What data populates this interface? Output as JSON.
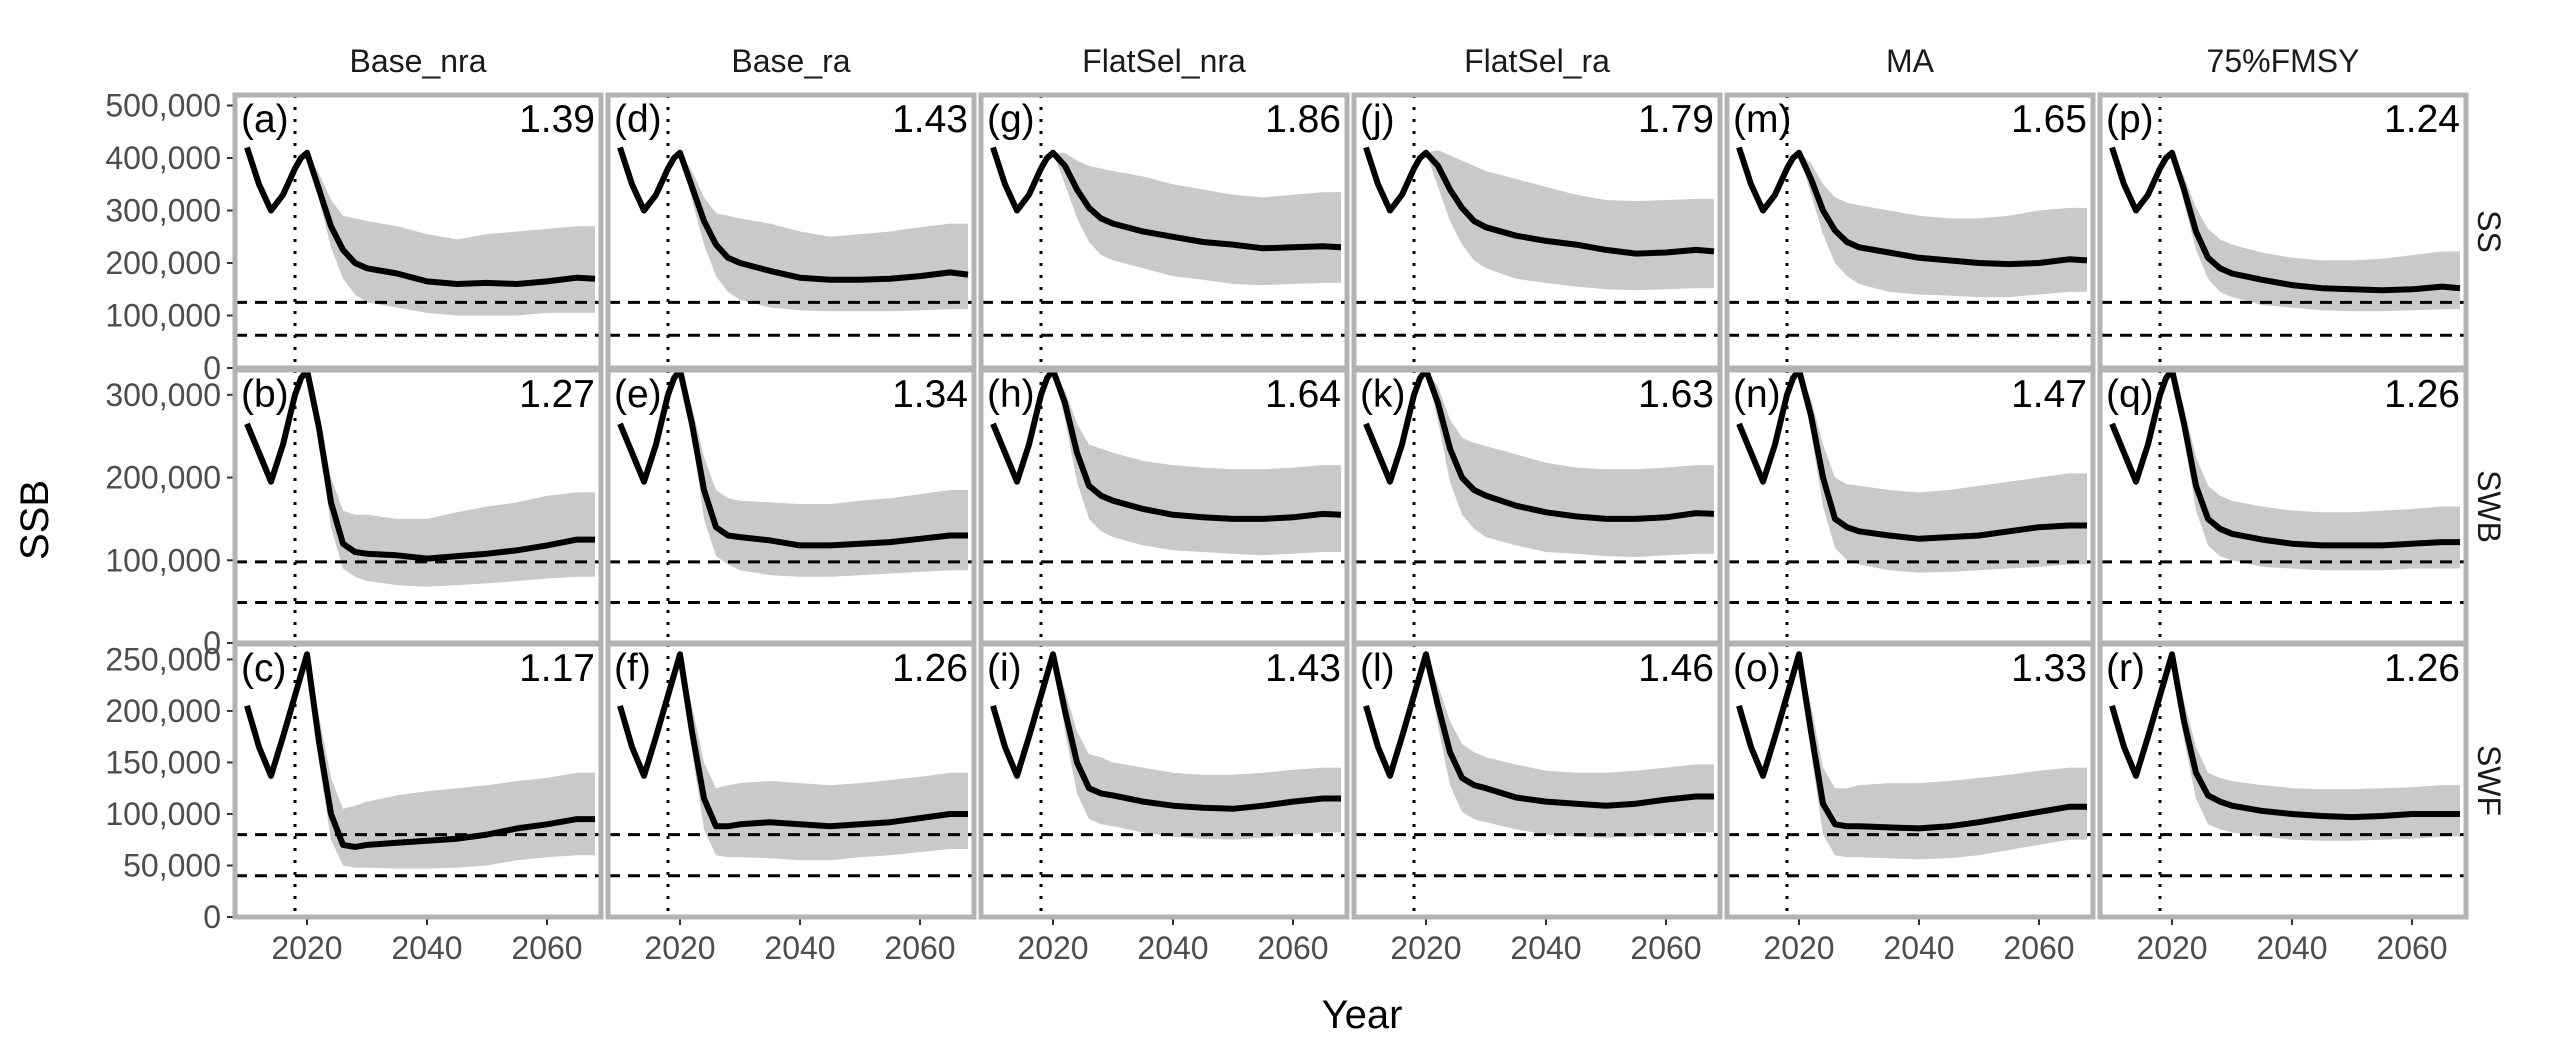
{
  "chart_data": {
    "type": "line",
    "xlabel": "Year",
    "ylabel": "SSB",
    "x_range": [
      2008,
      2069
    ],
    "x_ticks": [
      2020,
      2040,
      2060
    ],
    "historical_end_year": 2018,
    "columns": [
      "Base_nra",
      "Base_ra",
      "FlatSel_nra",
      "FlatSel_ra",
      "MA",
      "75%FMSY"
    ],
    "rows": [
      {
        "name": "SS",
        "ylim": [
          0,
          520000
        ],
        "ticks": [
          0,
          100000,
          200000,
          300000,
          400000,
          500000
        ],
        "tick_labels": [
          "0",
          "100,000",
          "200,000",
          "300,000",
          "400,000",
          "500,000"
        ],
        "reference_lines": [
          125000,
          62500
        ]
      },
      {
        "name": "SWB",
        "ylim": [
          0,
          330000
        ],
        "ticks": [
          0,
          100000,
          200000,
          300000
        ],
        "tick_labels": [
          "0",
          "100,000",
          "200,000",
          "300,000"
        ],
        "reference_lines": [
          98000,
          49000
        ]
      },
      {
        "name": "SWF",
        "ylim": [
          0,
          265000
        ],
        "ticks": [
          0,
          50000,
          100000,
          150000,
          200000,
          250000
        ],
        "tick_labels": [
          "0",
          "50,000",
          "100,000",
          "150,000",
          "200,000",
          "250,000"
        ],
        "reference_lines": [
          80000,
          40000
        ]
      }
    ],
    "historical": {
      "x": [
        2010,
        2012,
        2014,
        2016,
        2018,
        2019,
        2020
      ],
      "SS": [
        420000,
        350000,
        300000,
        330000,
        380000,
        400000,
        410000
      ],
      "SWB": [
        265000,
        230000,
        195000,
        240000,
        300000,
        320000,
        330000
      ],
      "SWF": [
        205000,
        165000,
        137000,
        175000,
        215000,
        235000,
        255000
      ]
    },
    "projection_x": [
      2020,
      2022,
      2024,
      2026,
      2028,
      2030,
      2035,
      2040,
      2045,
      2050,
      2055,
      2060,
      2065,
      2068
    ],
    "panels": [
      {
        "tag": "(a)",
        "ratio": "1.39",
        "row": "SS",
        "col": "Base_nra",
        "median": [
          410000,
          340000,
          270000,
          225000,
          200000,
          190000,
          180000,
          165000,
          160000,
          162000,
          160000,
          165000,
          172000,
          170000
        ],
        "lower": [
          410000,
          320000,
          230000,
          170000,
          140000,
          125000,
          115000,
          105000,
          100000,
          100000,
          100000,
          105000,
          105000,
          105000
        ],
        "upper": [
          410000,
          370000,
          320000,
          290000,
          285000,
          280000,
          270000,
          255000,
          245000,
          255000,
          260000,
          265000,
          270000,
          270000
        ]
      },
      {
        "tag": "(d)",
        "ratio": "1.43",
        "row": "SS",
        "col": "Base_ra",
        "median": [
          410000,
          345000,
          280000,
          235000,
          210000,
          200000,
          185000,
          172000,
          168000,
          168000,
          170000,
          175000,
          182000,
          178000
        ],
        "lower": [
          410000,
          320000,
          235000,
          175000,
          145000,
          130000,
          115000,
          110000,
          108000,
          108000,
          108000,
          110000,
          112000,
          112000
        ],
        "upper": [
          410000,
          375000,
          325000,
          295000,
          290000,
          285000,
          275000,
          260000,
          250000,
          255000,
          260000,
          268000,
          275000,
          275000
        ]
      },
      {
        "tag": "(g)",
        "ratio": "1.86",
        "row": "SS",
        "col": "FlatSel_nra",
        "median": [
          410000,
          385000,
          340000,
          305000,
          285000,
          275000,
          260000,
          250000,
          240000,
          235000,
          228000,
          230000,
          232000,
          230000
        ],
        "lower": [
          410000,
          350000,
          285000,
          240000,
          215000,
          205000,
          190000,
          175000,
          168000,
          160000,
          158000,
          160000,
          162000,
          162000
        ],
        "upper": [
          410000,
          410000,
          395000,
          385000,
          380000,
          375000,
          365000,
          350000,
          340000,
          330000,
          325000,
          330000,
          335000,
          335000
        ]
      },
      {
        "tag": "(j)",
        "ratio": "1.79",
        "row": "SS",
        "col": "FlatSel_ra",
        "median": [
          410000,
          385000,
          340000,
          305000,
          280000,
          268000,
          252000,
          242000,
          235000,
          225000,
          218000,
          220000,
          225000,
          222000
        ],
        "lower": [
          410000,
          345000,
          280000,
          235000,
          205000,
          190000,
          170000,
          162000,
          155000,
          150000,
          148000,
          150000,
          152000,
          152000
        ],
        "upper": [
          410000,
          415000,
          405000,
          395000,
          385000,
          375000,
          360000,
          345000,
          330000,
          320000,
          318000,
          320000,
          322000,
          322000
        ]
      },
      {
        "tag": "(m)",
        "ratio": "1.65",
        "row": "SS",
        "col": "MA",
        "median": [
          410000,
          360000,
          300000,
          262000,
          240000,
          230000,
          220000,
          210000,
          205000,
          200000,
          198000,
          200000,
          207000,
          205000
        ],
        "lower": [
          410000,
          330000,
          255000,
          200000,
          175000,
          160000,
          145000,
          140000,
          138000,
          135000,
          135000,
          140000,
          145000,
          145000
        ],
        "upper": [
          410000,
          390000,
          350000,
          325000,
          315000,
          310000,
          300000,
          290000,
          285000,
          285000,
          290000,
          300000,
          305000,
          305000
        ]
      },
      {
        "tag": "(p)",
        "ratio": "1.24",
        "row": "SS",
        "col": "75%FMSY",
        "median": [
          410000,
          340000,
          260000,
          210000,
          190000,
          180000,
          168000,
          158000,
          152000,
          150000,
          148000,
          150000,
          155000,
          152000
        ],
        "lower": [
          410000,
          315000,
          225000,
          170000,
          145000,
          135000,
          120000,
          115000,
          110000,
          108000,
          108000,
          110000,
          112000,
          112000
        ],
        "upper": [
          410000,
          365000,
          305000,
          265000,
          245000,
          235000,
          220000,
          210000,
          205000,
          205000,
          208000,
          215000,
          222000,
          222000
        ]
      },
      {
        "tag": "(b)",
        "ratio": "1.27",
        "row": "SWB",
        "col": "Base_nra",
        "median": [
          330000,
          260000,
          170000,
          120000,
          110000,
          108000,
          106000,
          102000,
          105000,
          108000,
          112000,
          118000,
          125000,
          125000
        ],
        "lower": [
          330000,
          245000,
          140000,
          90000,
          80000,
          75000,
          70000,
          68000,
          70000,
          72000,
          75000,
          78000,
          80000,
          80000
        ],
        "upper": [
          330000,
          275000,
          200000,
          160000,
          155000,
          155000,
          150000,
          150000,
          158000,
          165000,
          170000,
          178000,
          182000,
          182000
        ]
      },
      {
        "tag": "(e)",
        "ratio": "1.34",
        "row": "SWB",
        "col": "Base_ra",
        "median": [
          330000,
          265000,
          185000,
          140000,
          130000,
          128000,
          124000,
          118000,
          118000,
          120000,
          122000,
          126000,
          130000,
          130000
        ],
        "lower": [
          330000,
          250000,
          150000,
          105000,
          95000,
          88000,
          82000,
          80000,
          80000,
          82000,
          84000,
          86000,
          88000,
          88000
        ],
        "upper": [
          330000,
          285000,
          225000,
          185000,
          175000,
          172000,
          170000,
          168000,
          168000,
          172000,
          175000,
          180000,
          185000,
          185000
        ]
      },
      {
        "tag": "(h)",
        "ratio": "1.64",
        "row": "SWB",
        "col": "FlatSel_nra",
        "median": [
          330000,
          290000,
          230000,
          190000,
          178000,
          172000,
          162000,
          155000,
          152000,
          150000,
          150000,
          152000,
          156000,
          155000
        ],
        "lower": [
          330000,
          270000,
          195000,
          150000,
          135000,
          128000,
          118000,
          112000,
          110000,
          108000,
          106000,
          108000,
          110000,
          110000
        ],
        "upper": [
          330000,
          305000,
          265000,
          240000,
          235000,
          230000,
          220000,
          215000,
          212000,
          210000,
          210000,
          212000,
          215000,
          215000
        ]
      },
      {
        "tag": "(k)",
        "ratio": "1.63",
        "row": "SWB",
        "col": "FlatSel_ra",
        "median": [
          330000,
          290000,
          235000,
          200000,
          185000,
          178000,
          166000,
          158000,
          153000,
          150000,
          150000,
          152000,
          157000,
          156000
        ],
        "lower": [
          330000,
          268000,
          195000,
          155000,
          138000,
          128000,
          118000,
          110000,
          108000,
          105000,
          104000,
          106000,
          108000,
          108000
        ],
        "upper": [
          330000,
          310000,
          270000,
          248000,
          242000,
          238000,
          228000,
          218000,
          212000,
          210000,
          210000,
          212000,
          215000,
          215000
        ]
      },
      {
        "tag": "(n)",
        "ratio": "1.47",
        "row": "SWB",
        "col": "MA",
        "median": [
          330000,
          275000,
          200000,
          150000,
          140000,
          135000,
          130000,
          126000,
          128000,
          130000,
          135000,
          140000,
          142000,
          142000
        ],
        "lower": [
          330000,
          255000,
          165000,
          115000,
          100000,
          95000,
          88000,
          85000,
          86000,
          88000,
          90000,
          92000,
          95000,
          95000
        ],
        "upper": [
          330000,
          295000,
          240000,
          200000,
          192000,
          190000,
          185000,
          182000,
          185000,
          190000,
          195000,
          200000,
          205000,
          205000
        ]
      },
      {
        "tag": "(q)",
        "ratio": "1.26",
        "row": "SWB",
        "col": "75%FMSY",
        "median": [
          330000,
          265000,
          190000,
          150000,
          138000,
          132000,
          125000,
          120000,
          118000,
          118000,
          118000,
          120000,
          122000,
          122000
        ],
        "lower": [
          330000,
          250000,
          160000,
          118000,
          105000,
          100000,
          92000,
          90000,
          88000,
          88000,
          88000,
          90000,
          90000,
          90000
        ],
        "upper": [
          330000,
          285000,
          225000,
          190000,
          178000,
          172000,
          165000,
          160000,
          158000,
          158000,
          160000,
          162000,
          165000,
          165000
        ]
      },
      {
        "tag": "(c)",
        "ratio": "1.17",
        "row": "SWF",
        "col": "Base_nra",
        "median": [
          255000,
          170000,
          100000,
          70000,
          68000,
          70000,
          72000,
          74000,
          76000,
          80000,
          86000,
          90000,
          95000,
          95000
        ],
        "lower": [
          255000,
          150000,
          75000,
          50000,
          48000,
          48000,
          47000,
          47000,
          48000,
          50000,
          55000,
          58000,
          60000,
          60000
        ],
        "upper": [
          255000,
          195000,
          135000,
          105000,
          108000,
          112000,
          118000,
          122000,
          125000,
          128000,
          132000,
          135000,
          140000,
          140000
        ]
      },
      {
        "tag": "(f)",
        "ratio": "1.26",
        "row": "SWF",
        "col": "Base_ra",
        "median": [
          255000,
          180000,
          115000,
          88000,
          88000,
          90000,
          92000,
          90000,
          88000,
          90000,
          92000,
          96000,
          100000,
          100000
        ],
        "lower": [
          255000,
          160000,
          85000,
          60000,
          58000,
          58000,
          57000,
          55000,
          55000,
          58000,
          60000,
          63000,
          66000,
          66000
        ],
        "upper": [
          255000,
          205000,
          150000,
          125000,
          128000,
          130000,
          132000,
          130000,
          128000,
          130000,
          133000,
          136000,
          140000,
          140000
        ]
      },
      {
        "tag": "(i)",
        "ratio": "1.43",
        "row": "SWF",
        "col": "FlatSel_nra",
        "median": [
          255000,
          200000,
          150000,
          125000,
          120000,
          118000,
          112000,
          108000,
          106000,
          105000,
          108000,
          112000,
          115000,
          115000
        ],
        "lower": [
          255000,
          180000,
          120000,
          95000,
          90000,
          88000,
          82000,
          78000,
          76000,
          75000,
          77000,
          80000,
          82000,
          82000
        ],
        "upper": [
          255000,
          220000,
          180000,
          158000,
          155000,
          150000,
          145000,
          140000,
          138000,
          138000,
          140000,
          143000,
          145000,
          145000
        ]
      },
      {
        "tag": "(l)",
        "ratio": "1.46",
        "row": "SWF",
        "col": "FlatSel_ra",
        "median": [
          255000,
          205000,
          160000,
          135000,
          128000,
          125000,
          116000,
          112000,
          110000,
          108000,
          110000,
          114000,
          117000,
          117000
        ],
        "lower": [
          255000,
          185000,
          128000,
          102000,
          95000,
          92000,
          85000,
          80000,
          78000,
          77000,
          78000,
          80000,
          82000,
          82000
        ],
        "upper": [
          255000,
          225000,
          190000,
          168000,
          160000,
          155000,
          148000,
          142000,
          140000,
          140000,
          142000,
          145000,
          148000,
          148000
        ]
      },
      {
        "tag": "(o)",
        "ratio": "1.33",
        "row": "SWF",
        "col": "MA",
        "median": [
          255000,
          180000,
          110000,
          90000,
          88000,
          88000,
          87000,
          86000,
          88000,
          92000,
          97000,
          102000,
          107000,
          107000
        ],
        "lower": [
          255000,
          160000,
          80000,
          60000,
          58000,
          58000,
          57000,
          56000,
          57000,
          60000,
          65000,
          70000,
          75000,
          75000
        ],
        "upper": [
          255000,
          205000,
          145000,
          125000,
          125000,
          128000,
          130000,
          130000,
          132000,
          135000,
          138000,
          142000,
          145000,
          145000
        ]
      },
      {
        "tag": "(r)",
        "ratio": "1.26",
        "row": "SWF",
        "col": "75%FMSY",
        "median": [
          255000,
          190000,
          140000,
          118000,
          112000,
          108000,
          103000,
          100000,
          98000,
          97000,
          98000,
          100000,
          100000,
          100000
        ],
        "lower": [
          255000,
          172000,
          115000,
          90000,
          85000,
          82000,
          78000,
          75000,
          74000,
          74000,
          75000,
          76000,
          78000,
          78000
        ],
        "upper": [
          255000,
          210000,
          165000,
          140000,
          135000,
          132000,
          128000,
          125000,
          124000,
          124000,
          125000,
          126000,
          128000,
          128000
        ]
      }
    ]
  }
}
